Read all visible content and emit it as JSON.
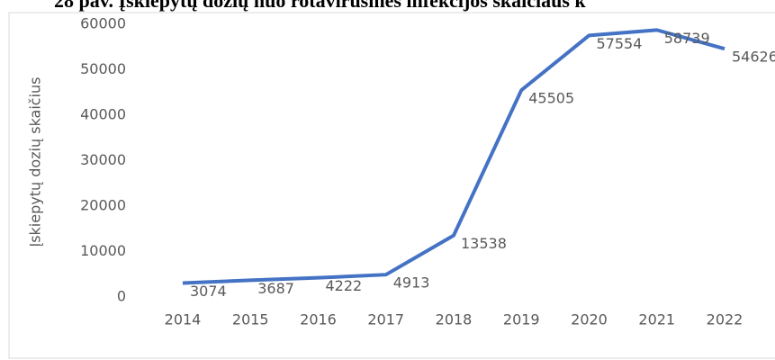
{
  "chart_data": {
    "type": "line",
    "title": "28 pav. Įskiepytų dozių nuo rotavirusinės infekcijos skaičiaus k",
    "y_label": "Įskiepytų dozių skaičius",
    "categories": [
      "2014",
      "2015",
      "2016",
      "2017",
      "2018",
      "2019",
      "2020",
      "2021",
      "2022"
    ],
    "series": [
      {
        "name": "Įskiepytų dozių skaičius",
        "color": "#4472c4",
        "values": [
          3074,
          3687,
          4222,
          4913,
          13538,
          45505,
          57554,
          58739,
          54626
        ]
      }
    ],
    "ylim": [
      0,
      60000
    ],
    "yticks": [
      0,
      10000,
      20000,
      30000,
      40000,
      50000,
      60000
    ],
    "grid": false
  }
}
